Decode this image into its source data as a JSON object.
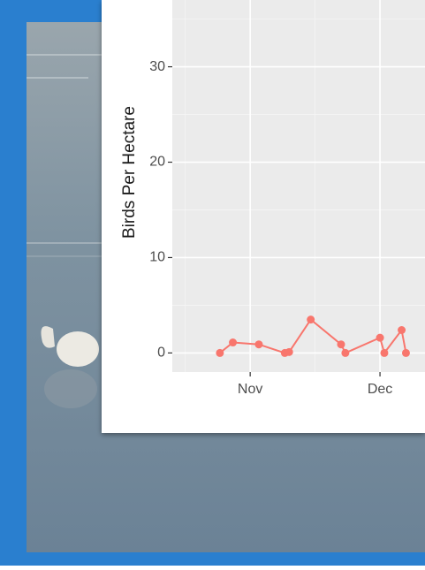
{
  "chart_data": {
    "type": "line",
    "y_label": "Birds Per Hectare",
    "x": [
      -7,
      -4,
      2,
      8,
      9,
      14,
      21,
      22,
      30,
      31,
      35,
      36
    ],
    "series": [
      {
        "color": "#f8766d",
        "values": [
          0,
          1.1,
          0.9,
          0,
          0.1,
          3.5,
          0.9,
          0,
          1.6,
          0,
          2.4,
          0
        ]
      }
    ],
    "xlim": [
      -18,
      40.4
    ],
    "ylim": [
      -2,
      37
    ],
    "xticks": [
      {
        "value": 0,
        "label": "Nov"
      },
      {
        "value": 30,
        "label": "Dec"
      }
    ],
    "yticks": [
      0,
      10,
      20,
      30
    ],
    "grid": true
  }
}
